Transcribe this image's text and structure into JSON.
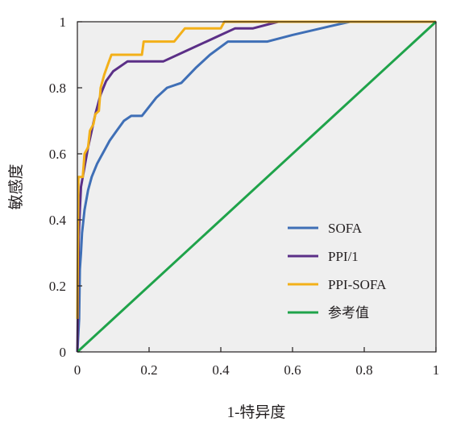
{
  "chart_data": {
    "type": "line",
    "title": "",
    "xlabel": "1-特异度",
    "ylabel": "敏感度",
    "xlim": [
      0,
      1
    ],
    "ylim": [
      0,
      1
    ],
    "xticks": [
      "0",
      "0.2",
      "0.4",
      "0.6",
      "0.8",
      "1"
    ],
    "yticks": [
      "0",
      "0.2",
      "0.4",
      "0.6",
      "0.8",
      "1"
    ],
    "grid": false,
    "background": "#efefef",
    "legend_position": "bottom-right",
    "series": [
      {
        "name": "SOFA",
        "color": "#3f6fb6",
        "points": [
          [
            0,
            0
          ],
          [
            0.005,
            0.1
          ],
          [
            0.007,
            0.25
          ],
          [
            0.01,
            0.3
          ],
          [
            0.013,
            0.36
          ],
          [
            0.02,
            0.43
          ],
          [
            0.03,
            0.49
          ],
          [
            0.04,
            0.53
          ],
          [
            0.055,
            0.57
          ],
          [
            0.07,
            0.6
          ],
          [
            0.09,
            0.64
          ],
          [
            0.11,
            0.67
          ],
          [
            0.13,
            0.7
          ],
          [
            0.15,
            0.715
          ],
          [
            0.18,
            0.715
          ],
          [
            0.22,
            0.77
          ],
          [
            0.25,
            0.8
          ],
          [
            0.29,
            0.815
          ],
          [
            0.33,
            0.86
          ],
          [
            0.37,
            0.9
          ],
          [
            0.42,
            0.94
          ],
          [
            0.53,
            0.94
          ],
          [
            0.6,
            0.96
          ],
          [
            0.7,
            0.985
          ],
          [
            0.76,
            1.0
          ],
          [
            1.0,
            1.0
          ]
        ]
      },
      {
        "name": "PPI/1",
        "color": "#5b2f87",
        "points": [
          [
            0,
            0
          ],
          [
            0.004,
            0.35
          ],
          [
            0.007,
            0.43
          ],
          [
            0.01,
            0.5
          ],
          [
            0.02,
            0.56
          ],
          [
            0.03,
            0.62
          ],
          [
            0.05,
            0.72
          ],
          [
            0.065,
            0.78
          ],
          [
            0.08,
            0.82
          ],
          [
            0.1,
            0.85
          ],
          [
            0.14,
            0.88
          ],
          [
            0.24,
            0.88
          ],
          [
            0.3,
            0.91
          ],
          [
            0.36,
            0.94
          ],
          [
            0.4,
            0.96
          ],
          [
            0.44,
            0.98
          ],
          [
            0.49,
            0.98
          ],
          [
            0.56,
            1.0
          ],
          [
            1.0,
            1.0
          ]
        ]
      },
      {
        "name": "PPI-SOFA",
        "color": "#f3b019",
        "points": [
          [
            0,
            0.1
          ],
          [
            0.003,
            0.53
          ],
          [
            0.015,
            0.53
          ],
          [
            0.02,
            0.6
          ],
          [
            0.03,
            0.62
          ],
          [
            0.035,
            0.67
          ],
          [
            0.045,
            0.69
          ],
          [
            0.05,
            0.72
          ],
          [
            0.06,
            0.73
          ],
          [
            0.065,
            0.8
          ],
          [
            0.075,
            0.84
          ],
          [
            0.085,
            0.87
          ],
          [
            0.095,
            0.9
          ],
          [
            0.18,
            0.9
          ],
          [
            0.185,
            0.94
          ],
          [
            0.27,
            0.94
          ],
          [
            0.3,
            0.98
          ],
          [
            0.4,
            0.98
          ],
          [
            0.41,
            1.0
          ],
          [
            1.0,
            1.0
          ]
        ]
      },
      {
        "name": "参考值",
        "color": "#1fa34a",
        "points": [
          [
            0,
            0
          ],
          [
            1,
            1
          ]
        ]
      }
    ]
  }
}
